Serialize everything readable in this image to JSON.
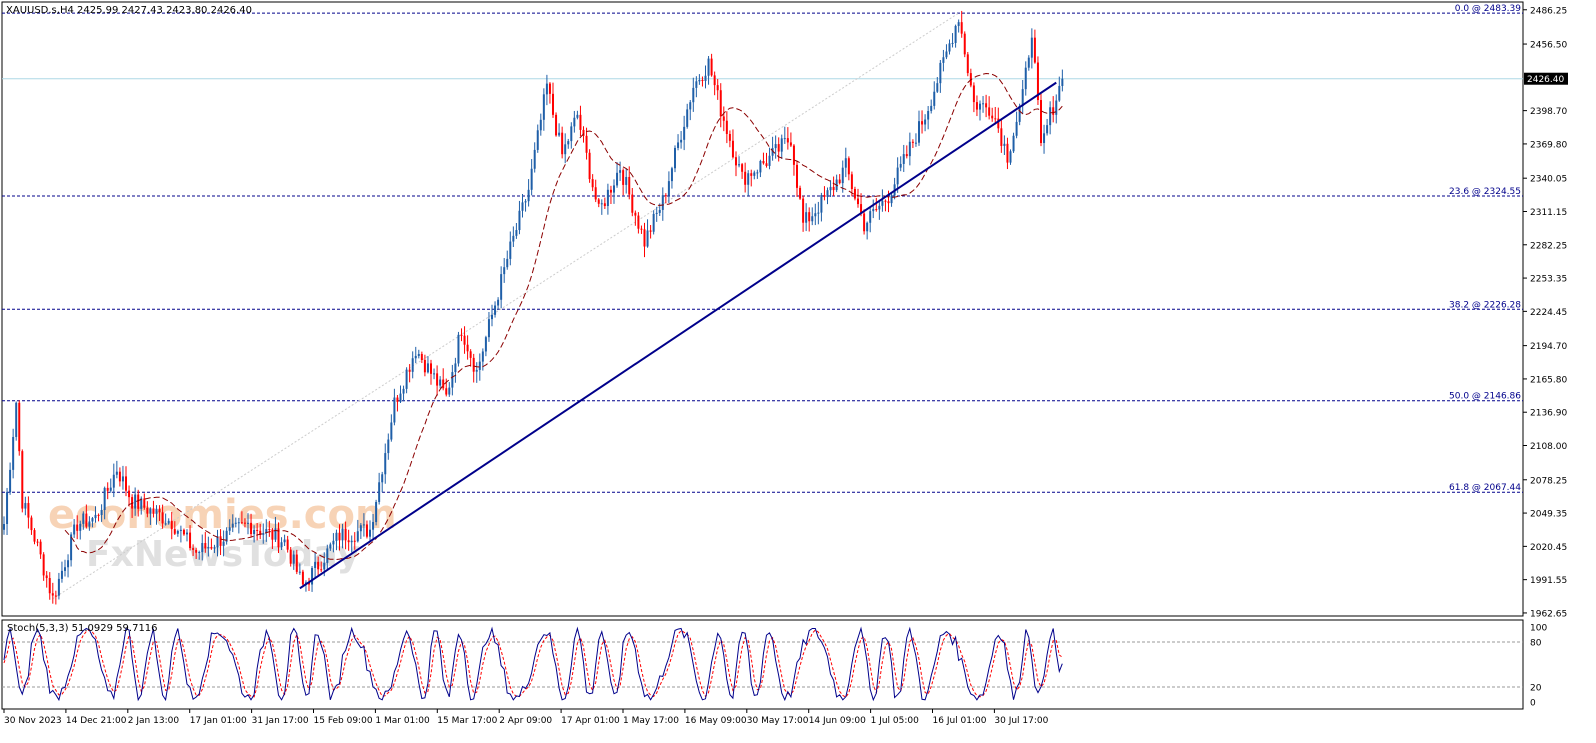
{
  "header": {
    "symbol_line": "XAUUSD.s,H4  2425.99 2427.43 2423.80 2426.40"
  },
  "watermark": {
    "line1": "economies.com",
    "line2": "FxNewsToday"
  },
  "colors": {
    "bull": "#1f5fa8",
    "bear": "#ff0000",
    "ma": "#8b0000",
    "trendline": "#00008b",
    "fib": "#00008b",
    "stoch_main": "#00008b",
    "stoch_signal": "#ff0000",
    "current_price_line": "#add8e6"
  },
  "chart_data": {
    "type": "candlestick",
    "symbol": "XAUUSD.s",
    "timeframe": "H4",
    "ohlc_last": {
      "open": 2425.99,
      "high": 2427.43,
      "low": 2423.8,
      "close": 2426.4
    },
    "current_price_label": "2426.40",
    "current_price": 2426.4,
    "ylim": [
      1960,
      2493
    ],
    "y_ticks": [
      {
        "value": 2486.25,
        "label": "2486.25"
      },
      {
        "value": 2456.5,
        "label": "2456.50"
      },
      {
        "value": 2398.7,
        "label": "2398.70"
      },
      {
        "value": 2369.8,
        "label": "2369.80"
      },
      {
        "value": 2340.05,
        "label": "2340.05"
      },
      {
        "value": 2311.15,
        "label": "2311.15"
      },
      {
        "value": 2282.25,
        "label": "2282.25"
      },
      {
        "value": 2253.35,
        "label": "2253.35"
      },
      {
        "value": 2224.45,
        "label": "2224.45"
      },
      {
        "value": 2194.7,
        "label": "2194.70"
      },
      {
        "value": 2165.8,
        "label": "2165.80"
      },
      {
        "value": 2136.9,
        "label": "2136.90"
      },
      {
        "value": 2108.0,
        "label": "2108.00"
      },
      {
        "value": 2078.25,
        "label": "2078.25"
      },
      {
        "value": 2049.35,
        "label": "2049.35"
      },
      {
        "value": 2020.45,
        "label": "2020.45"
      },
      {
        "value": 1991.55,
        "label": "1991.55"
      },
      {
        "value": 1962.65,
        "label": "1962.65"
      }
    ],
    "x_labels": [
      "30 Nov 2023",
      "14 Dec 21:00",
      "2 Jan 13:00",
      "17 Jan 01:00",
      "31 Jan 17:00",
      "15 Feb 09:00",
      "1 Mar 01:00",
      "15 Mar 17:00",
      "2 Apr 09:00",
      "17 Apr 01:00",
      "1 May 17:00",
      "16 May 09:00",
      "30 May 17:00",
      "14 Jun 09:00",
      "1 Jul 05:00",
      "16 Jul 01:00",
      "30 Jul 17:00"
    ],
    "fib_levels": [
      {
        "label": "0.0 @ 2483.39",
        "value": 2483.39
      },
      {
        "label": "23.6 @ 2324.55",
        "value": 2324.55
      },
      {
        "label": "38.2 @ 2226.28",
        "value": 2226.28
      },
      {
        "label": "50.0 @ 2146.86",
        "value": 2146.86
      },
      {
        "label": "61.8 @ 2067.44",
        "value": 2067.44
      }
    ],
    "trendline": {
      "start": {
        "bar": 97,
        "price": 1984
      },
      "end": {
        "bar": 345,
        "price": 2423
      }
    },
    "key_points": [
      {
        "bar": 0,
        "price": 2040
      },
      {
        "bar": 4,
        "price": 2146
      },
      {
        "bar": 6,
        "price": 2060
      },
      {
        "bar": 11,
        "price": 2020
      },
      {
        "bar": 16,
        "price": 1975
      },
      {
        "bar": 24,
        "price": 2040
      },
      {
        "bar": 30,
        "price": 2045
      },
      {
        "bar": 37,
        "price": 2088
      },
      {
        "bar": 42,
        "price": 2060
      },
      {
        "bar": 55,
        "price": 2042
      },
      {
        "bar": 63,
        "price": 2015
      },
      {
        "bar": 80,
        "price": 2040
      },
      {
        "bar": 92,
        "price": 2025
      },
      {
        "bar": 98,
        "price": 1986
      },
      {
        "bar": 110,
        "price": 2030
      },
      {
        "bar": 120,
        "price": 2035
      },
      {
        "bar": 128,
        "price": 2145
      },
      {
        "bar": 135,
        "price": 2192
      },
      {
        "bar": 145,
        "price": 2150
      },
      {
        "bar": 150,
        "price": 2210
      },
      {
        "bar": 155,
        "price": 2172
      },
      {
        "bar": 165,
        "price": 2270
      },
      {
        "bar": 172,
        "price": 2330
      },
      {
        "bar": 178,
        "price": 2420
      },
      {
        "bar": 183,
        "price": 2360
      },
      {
        "bar": 188,
        "price": 2395
      },
      {
        "bar": 195,
        "price": 2310
      },
      {
        "bar": 202,
        "price": 2350
      },
      {
        "bar": 210,
        "price": 2285
      },
      {
        "bar": 216,
        "price": 2320
      },
      {
        "bar": 226,
        "price": 2420
      },
      {
        "bar": 231,
        "price": 2440
      },
      {
        "bar": 235,
        "price": 2400
      },
      {
        "bar": 242,
        "price": 2340
      },
      {
        "bar": 250,
        "price": 2355
      },
      {
        "bar": 258,
        "price": 2375
      },
      {
        "bar": 262,
        "price": 2300
      },
      {
        "bar": 270,
        "price": 2325
      },
      {
        "bar": 276,
        "price": 2350
      },
      {
        "bar": 282,
        "price": 2300
      },
      {
        "bar": 290,
        "price": 2325
      },
      {
        "bar": 296,
        "price": 2360
      },
      {
        "bar": 302,
        "price": 2395
      },
      {
        "bar": 308,
        "price": 2440
      },
      {
        "bar": 313,
        "price": 2481
      },
      {
        "bar": 318,
        "price": 2405
      },
      {
        "bar": 324,
        "price": 2400
      },
      {
        "bar": 329,
        "price": 2360
      },
      {
        "bar": 334,
        "price": 2410
      },
      {
        "bar": 337,
        "price": 2470
      },
      {
        "bar": 340,
        "price": 2365
      },
      {
        "bar": 343,
        "price": 2395
      },
      {
        "bar": 347,
        "price": 2426
      }
    ],
    "stochastic": {
      "label": "Stoch(5,3,3) 51.0929 59.7116",
      "main": 51.0929,
      "signal": 59.7116,
      "ylim": [
        0,
        100
      ],
      "levels": [
        20,
        80
      ],
      "tick_labels": [
        "100",
        "80",
        "20",
        "0"
      ]
    }
  }
}
